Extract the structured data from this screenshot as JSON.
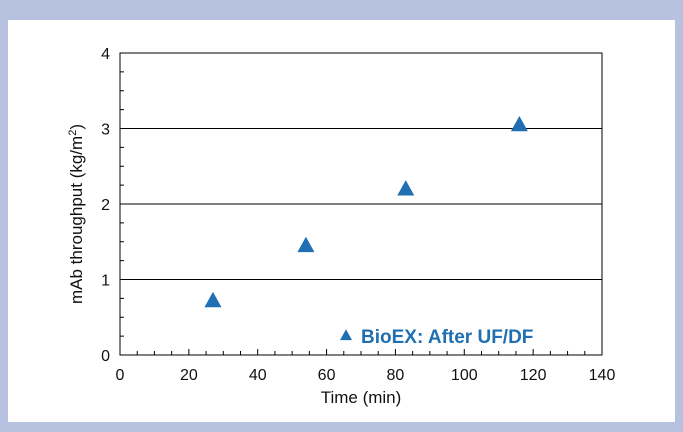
{
  "chart_data": {
    "type": "scatter",
    "xlabel": "Time (min)",
    "ylabel_main": "mAb throughput (kg/m",
    "ylabel_sup": "2",
    "ylabel_tail": ")",
    "xlim": [
      0,
      140
    ],
    "ylim": [
      0,
      4
    ],
    "x_major_ticks": [
      0,
      20,
      40,
      60,
      80,
      100,
      120,
      140
    ],
    "x_minor_step": 5,
    "y_major_ticks": [
      0,
      1,
      2,
      3,
      4
    ],
    "y_minor_step": 0.25,
    "grid": "horizontal-major",
    "legend": {
      "position": "bottom-right",
      "marker": "triangle"
    },
    "series": [
      {
        "name": "BioEX: After UF/DF",
        "color": "#1f6fb2",
        "marker": "triangle",
        "points": [
          {
            "x": 27,
            "y": 0.71
          },
          {
            "x": 54,
            "y": 1.44
          },
          {
            "x": 83,
            "y": 2.19
          },
          {
            "x": 116,
            "y": 3.04
          }
        ]
      }
    ]
  }
}
